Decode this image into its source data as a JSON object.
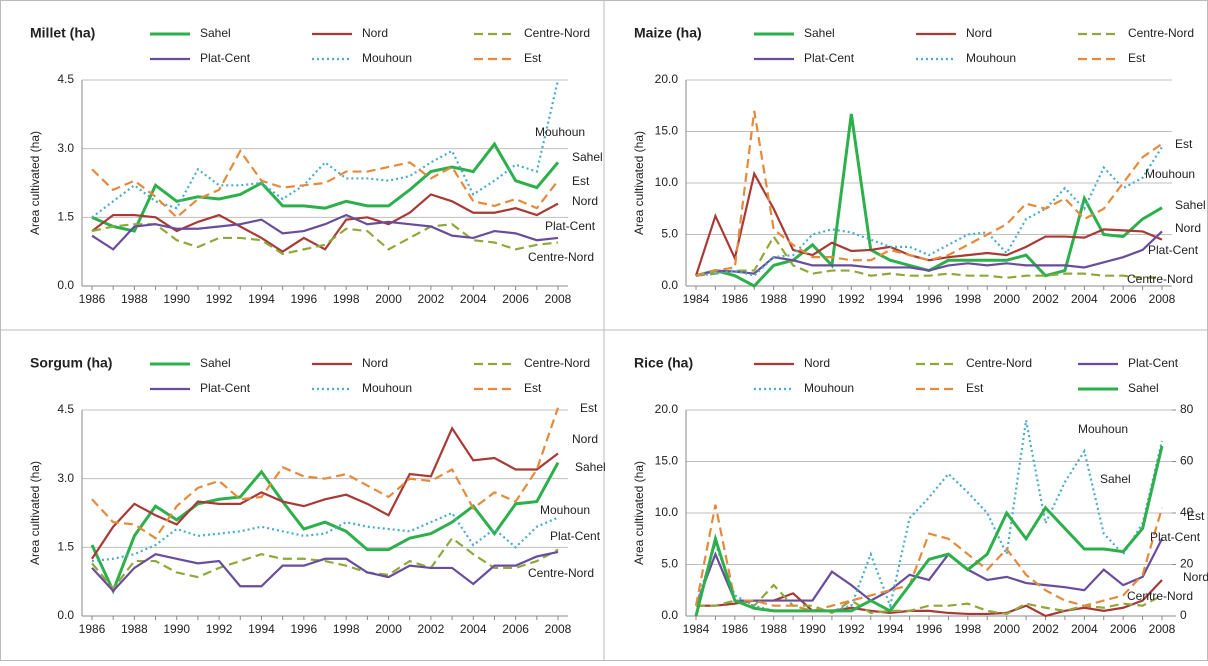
{
  "chart_data": [
    {
      "type": "line",
      "title": "Millet (ha)",
      "y_label": "Area cultivated (ha)",
      "grid": true,
      "x": [
        1986,
        1987,
        1988,
        1989,
        1990,
        1991,
        1992,
        1993,
        1994,
        1995,
        1996,
        1997,
        1998,
        1999,
        2000,
        2001,
        2002,
        2003,
        2004,
        2005,
        2006,
        2007,
        2008
      ],
      "xlim": [
        1986,
        2008
      ],
      "xticks": [
        1986,
        1988,
        1990,
        1992,
        1994,
        1996,
        1998,
        2000,
        2002,
        2004,
        2006,
        2008
      ],
      "ylim": [
        0,
        4.5
      ],
      "yticks": [
        {
          "value": 0,
          "label": "0.0"
        },
        1.5,
        {
          "value": 3,
          "label": "3.0"
        },
        4.5
      ],
      "series": [
        {
          "name": "Sahel",
          "color": "#2db04b",
          "style": "solid",
          "values": [
            1.5,
            1.3,
            1.2,
            2.2,
            1.85,
            1.95,
            1.9,
            2.0,
            2.25,
            1.75,
            1.75,
            1.7,
            1.85,
            1.75,
            1.75,
            2.1,
            2.5,
            2.6,
            2.5,
            3.1,
            2.3,
            2.15,
            2.7
          ]
        },
        {
          "name": "Nord",
          "color": "#a83a36",
          "style": "solid",
          "values": [
            1.2,
            1.55,
            1.55,
            1.5,
            1.2,
            1.4,
            1.55,
            1.3,
            1.05,
            0.75,
            1.05,
            0.8,
            1.45,
            1.5,
            1.35,
            1.6,
            2.0,
            1.85,
            1.6,
            1.6,
            1.7,
            1.55,
            1.8
          ]
        },
        {
          "name": "Centre-Nord",
          "color": "#8fa83c",
          "style": "dashed",
          "values": [
            1.2,
            1.3,
            1.35,
            1.35,
            1.0,
            0.85,
            1.05,
            1.05,
            1.0,
            0.7,
            0.8,
            0.9,
            1.25,
            1.2,
            0.8,
            1.05,
            1.3,
            1.35,
            1.0,
            0.95,
            0.8,
            0.9,
            0.95
          ]
        },
        {
          "name": "Plat-Cent",
          "color": "#6a4c9c",
          "style": "solid",
          "values": [
            1.1,
            0.8,
            1.3,
            1.35,
            1.25,
            1.25,
            1.3,
            1.35,
            1.45,
            1.15,
            1.2,
            1.35,
            1.55,
            1.35,
            1.4,
            1.35,
            1.3,
            1.1,
            1.05,
            1.2,
            1.15,
            1.0,
            1.05
          ]
        },
        {
          "name": "Mouhoun",
          "color": "#4bacc6",
          "style": "dotted",
          "values": [
            1.5,
            1.85,
            2.2,
            1.85,
            1.7,
            2.55,
            2.2,
            2.2,
            2.25,
            1.9,
            2.2,
            2.7,
            2.35,
            2.35,
            2.3,
            2.4,
            2.7,
            2.95,
            2.0,
            2.3,
            2.65,
            2.5,
            4.5
          ]
        },
        {
          "name": "Est",
          "color": "#e58a3c",
          "style": "dashed",
          "values": [
            2.55,
            2.1,
            2.3,
            1.95,
            1.5,
            1.9,
            2.1,
            2.95,
            2.3,
            2.15,
            2.2,
            2.25,
            2.5,
            2.5,
            2.6,
            2.7,
            2.35,
            2.6,
            1.85,
            1.75,
            1.9,
            1.7,
            2.3
          ]
        }
      ],
      "annotations": [
        "Mouhoun",
        "Sahel",
        "Est",
        "Nord",
        "Plat-Cent",
        "Centre-Nord"
      ]
    },
    {
      "type": "line",
      "title": "Maize (ha)",
      "y_label": "Area cultivated (ha)",
      "grid": true,
      "x": [
        1984,
        1985,
        1986,
        1987,
        1988,
        1989,
        1990,
        1991,
        1992,
        1993,
        1994,
        1995,
        1996,
        1997,
        1998,
        1999,
        2000,
        2001,
        2002,
        2003,
        2004,
        2005,
        2006,
        2007,
        2008
      ],
      "xlim": [
        1984,
        2008
      ],
      "xticks": [
        1984,
        1986,
        1988,
        1990,
        1992,
        1994,
        1996,
        1998,
        2000,
        2002,
        2004,
        2006,
        2008
      ],
      "ylim": [
        0,
        20
      ],
      "yticks": [
        {
          "value": 0,
          "label": "0.0"
        },
        {
          "value": 5,
          "label": "5.0"
        },
        {
          "value": 10,
          "label": "10.0"
        },
        {
          "value": 15,
          "label": "15.0"
        },
        {
          "value": 20,
          "label": "20.0"
        }
      ],
      "series": [
        {
          "name": "Sahel",
          "color": "#2db04b",
          "style": "solid",
          "values": [
            1.0,
            1.5,
            1.0,
            0.0,
            2.0,
            2.5,
            4.0,
            2.0,
            16.7,
            3.5,
            2.5,
            2.0,
            1.5,
            2.5,
            2.5,
            2.5,
            2.5,
            3.0,
            1.0,
            1.5,
            8.5,
            5.0,
            4.8,
            6.5,
            7.6
          ]
        },
        {
          "name": "Nord",
          "color": "#a83a36",
          "style": "solid",
          "values": [
            1.0,
            6.8,
            2.7,
            10.9,
            7.5,
            3.5,
            3.0,
            4.2,
            3.4,
            3.5,
            3.8,
            3.0,
            2.5,
            2.8,
            3.0,
            3.2,
            3.0,
            3.8,
            4.8,
            4.8,
            4.7,
            5.5,
            5.4,
            5.3,
            4.5
          ]
        },
        {
          "name": "Centre-Nord",
          "color": "#8fa83c",
          "style": "dashed",
          "values": [
            1.0,
            1.2,
            1.5,
            1.5,
            4.8,
            2.0,
            1.2,
            1.5,
            1.5,
            1.0,
            1.2,
            1.0,
            1.0,
            1.2,
            1.0,
            1.0,
            0.8,
            1.0,
            1.0,
            1.2,
            1.2,
            1.0,
            1.0,
            0.8,
            0.8
          ]
        },
        {
          "name": "Plat-Cent",
          "color": "#6a4c9c",
          "style": "solid",
          "values": [
            1.0,
            1.5,
            1.4,
            1.2,
            2.8,
            2.5,
            2.0,
            2.0,
            2.0,
            1.8,
            1.8,
            1.8,
            1.5,
            2.0,
            2.2,
            2.0,
            2.2,
            2.0,
            2.0,
            2.0,
            1.8,
            2.3,
            2.8,
            3.5,
            5.3
          ]
        },
        {
          "name": "Mouhoun",
          "color": "#4bacc6",
          "style": "dotted",
          "values": [
            1.0,
            1.2,
            1.5,
            1.0,
            2.8,
            3.0,
            5.0,
            5.5,
            5.2,
            4.5,
            3.8,
            3.8,
            3.0,
            4.0,
            5.0,
            5.2,
            3.2,
            6.5,
            7.5,
            9.5,
            7.5,
            11.5,
            9.5,
            10.5,
            13.5
          ]
        },
        {
          "name": "Est",
          "color": "#e58a3c",
          "style": "dashed",
          "values": [
            1.0,
            1.5,
            1.8,
            17.0,
            5.5,
            4.0,
            2.8,
            2.8,
            2.5,
            2.5,
            3.5,
            3.0,
            2.5,
            3.0,
            4.0,
            5.0,
            6.0,
            8.0,
            7.5,
            8.5,
            6.5,
            7.5,
            10.0,
            12.5,
            13.8
          ]
        }
      ],
      "annotations": [
        "Est",
        "Mouhoun",
        "Sahel",
        "Nord",
        "Plat-Cent",
        "Centre-Nord"
      ]
    },
    {
      "type": "line",
      "title": "Sorgum (ha)",
      "y_label": "Area cultivated (ha)",
      "grid": true,
      "x": [
        1986,
        1987,
        1988,
        1989,
        1990,
        1991,
        1992,
        1993,
        1994,
        1995,
        1996,
        1997,
        1998,
        1999,
        2000,
        2001,
        2002,
        2003,
        2004,
        2005,
        2006,
        2007,
        2008
      ],
      "xlim": [
        1986,
        2008
      ],
      "xticks": [
        1986,
        1988,
        1990,
        1992,
        1994,
        1996,
        1998,
        2000,
        2002,
        2004,
        2006,
        2008
      ],
      "ylim": [
        0,
        4.5
      ],
      "yticks": [
        {
          "value": 0,
          "label": "0.0"
        },
        1.5,
        {
          "value": 3,
          "label": "3.0"
        },
        4.5
      ],
      "series": [
        {
          "name": "Sahel",
          "color": "#2db04b",
          "style": "solid",
          "values": [
            1.55,
            0.55,
            1.75,
            2.4,
            2.1,
            2.45,
            2.55,
            2.6,
            3.15,
            2.5,
            1.9,
            2.05,
            1.85,
            1.45,
            1.45,
            1.7,
            1.8,
            2.05,
            2.4,
            1.8,
            2.45,
            2.5,
            3.35
          ]
        },
        {
          "name": "Nord",
          "color": "#a83a36",
          "style": "solid",
          "values": [
            1.25,
            1.95,
            2.45,
            2.2,
            2.0,
            2.5,
            2.45,
            2.45,
            2.7,
            2.5,
            2.4,
            2.55,
            2.65,
            2.45,
            2.2,
            3.1,
            3.05,
            4.1,
            3.4,
            3.45,
            3.2,
            3.2,
            3.55
          ]
        },
        {
          "name": "Centre-Nord",
          "color": "#8fa83c",
          "style": "dashed",
          "values": [
            1.15,
            0.6,
            1.2,
            1.2,
            0.95,
            0.85,
            1.05,
            1.2,
            1.35,
            1.25,
            1.25,
            1.2,
            1.1,
            0.95,
            0.9,
            1.2,
            1.05,
            1.7,
            1.35,
            1.05,
            1.05,
            1.2,
            1.45
          ]
        },
        {
          "name": "Plat-Cent",
          "color": "#6a4c9c",
          "style": "solid",
          "values": [
            1.05,
            0.55,
            1.05,
            1.35,
            1.25,
            1.15,
            1.2,
            0.65,
            0.65,
            1.1,
            1.1,
            1.25,
            1.25,
            0.95,
            0.85,
            1.1,
            1.05,
            1.05,
            0.7,
            1.1,
            1.1,
            1.3,
            1.4
          ]
        },
        {
          "name": "Mouhoun",
          "color": "#4bacc6",
          "style": "dotted",
          "values": [
            1.2,
            1.25,
            1.35,
            1.55,
            1.9,
            1.75,
            1.8,
            1.85,
            1.95,
            1.85,
            1.75,
            1.8,
            2.05,
            1.95,
            1.9,
            1.85,
            2.05,
            2.25,
            1.55,
            1.9,
            1.5,
            1.95,
            2.15
          ]
        },
        {
          "name": "Est",
          "color": "#e58a3c",
          "style": "dashed",
          "values": [
            2.55,
            2.05,
            2.0,
            1.7,
            2.4,
            2.8,
            2.95,
            2.55,
            2.6,
            3.25,
            3.05,
            3.0,
            3.1,
            2.85,
            2.6,
            3.0,
            2.95,
            3.2,
            2.35,
            2.7,
            2.5,
            3.2,
            4.55
          ]
        }
      ],
      "annotations": [
        "Est",
        "Nord",
        "Sahel",
        "Mouhoun",
        "Plat-Cent",
        "Centre-Nord"
      ]
    },
    {
      "type": "line",
      "title": "Rice (ha)",
      "y_label": "Area cultivated (ha)",
      "grid": true,
      "x": [
        1984,
        1985,
        1986,
        1987,
        1988,
        1989,
        1990,
        1991,
        1992,
        1993,
        1994,
        1995,
        1996,
        1997,
        1998,
        1999,
        2000,
        2001,
        2002,
        2003,
        2004,
        2005,
        2006,
        2007,
        2008
      ],
      "xlim": [
        1984,
        2008
      ],
      "xticks": [
        1984,
        1986,
        1988,
        1990,
        1992,
        1994,
        1996,
        1998,
        2000,
        2002,
        2004,
        2006,
        2008
      ],
      "ylim": [
        0,
        20
      ],
      "yticks": [
        {
          "value": 0,
          "label": "0.0"
        },
        {
          "value": 5,
          "label": "5.0"
        },
        {
          "value": 10,
          "label": "10.0"
        },
        {
          "value": 15,
          "label": "15.0"
        },
        {
          "value": 20,
          "label": "20.0"
        }
      ],
      "y2lim": [
        0,
        80
      ],
      "y2ticks": [
        0,
        20,
        40,
        60,
        80
      ],
      "series": [
        {
          "name": "Nord",
          "color": "#a83a36",
          "style": "solid",
          "values": [
            1.0,
            1.0,
            1.2,
            1.5,
            1.5,
            2.2,
            0.5,
            0.5,
            0.8,
            0.5,
            0.3,
            0.5,
            0.5,
            0.3,
            0.2,
            0.2,
            0.3,
            1.0,
            0.0,
            0.5,
            0.8,
            0.5,
            0.8,
            1.5,
            3.5
          ]
        },
        {
          "name": "Centre-Nord",
          "color": "#8fa83c",
          "style": "dashed",
          "values": [
            1.0,
            1.0,
            1.5,
            1.0,
            3.0,
            1.0,
            1.0,
            0.3,
            1.5,
            0.3,
            0.5,
            0.5,
            1.0,
            1.0,
            1.2,
            0.5,
            0.2,
            1.2,
            0.8,
            0.5,
            1.0,
            0.8,
            1.2,
            1.0,
            2.0
          ]
        },
        {
          "name": "Plat-Cent",
          "color": "#6a4c9c",
          "style": "solid",
          "values": [
            1.0,
            6.0,
            1.5,
            1.5,
            1.5,
            1.5,
            1.5,
            4.3,
            3.0,
            1.5,
            2.5,
            4.0,
            3.5,
            6.0,
            4.5,
            3.5,
            3.8,
            3.2,
            3.0,
            2.8,
            2.5,
            4.5,
            3.0,
            3.8,
            7.5
          ]
        },
        {
          "name": "Mouhoun",
          "color": "#4bacc6",
          "style": "dotted",
          "values": [
            1.0,
            7.0,
            2.0,
            1.0,
            0.5,
            0.5,
            0.5,
            0.5,
            1.0,
            6.0,
            1.0,
            9.5,
            11.5,
            13.8,
            12.0,
            10.0,
            6.0,
            19.0,
            9.0,
            13.0,
            16.0,
            8.0,
            6.0,
            9.0,
            17.0
          ]
        },
        {
          "name": "Est",
          "color": "#e58a3c",
          "style": "dashed",
          "values": [
            1.0,
            10.8,
            1.5,
            1.5,
            1.0,
            1.0,
            0.5,
            1.0,
            1.5,
            2.0,
            2.5,
            3.0,
            8.0,
            7.5,
            6.0,
            4.5,
            6.5,
            4.0,
            2.5,
            1.5,
            1.0,
            1.5,
            2.0,
            4.0,
            10.5
          ]
        },
        {
          "name": "Sahel",
          "color": "#2db04b",
          "style": "solid",
          "axis": "y2",
          "values": [
            0,
            30,
            6,
            3,
            2,
            2,
            2,
            2,
            2,
            6,
            2,
            12,
            22,
            24,
            18,
            24,
            40,
            30,
            42,
            34,
            26,
            26,
            25,
            34,
            66
          ]
        }
      ],
      "annotations": [
        "Mouhoun",
        "Sahel",
        "Est",
        "Plat-Cent",
        "Nord",
        "Centre-Nord"
      ]
    }
  ]
}
